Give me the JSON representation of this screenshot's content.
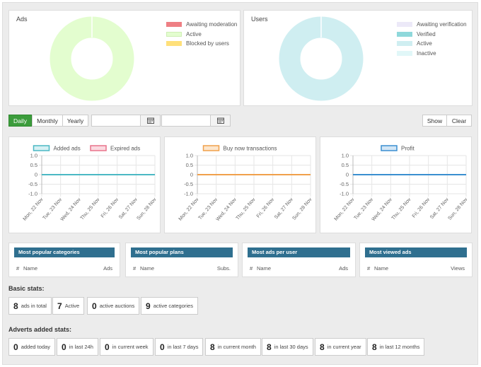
{
  "ads_panel": {
    "title": "Ads",
    "legend": [
      {
        "label": "Awaiting moderation",
        "color": "#ee7f84"
      },
      {
        "label": "Active",
        "color": "#e3fdcf"
      },
      {
        "label": "Blocked by users",
        "color": "#ffe07a"
      }
    ]
  },
  "users_panel": {
    "title": "Users",
    "legend": [
      {
        "label": "Awaiting verification",
        "color": "#ece9f8"
      },
      {
        "label": "Verified",
        "color": "#8fd8db"
      },
      {
        "label": "Active",
        "color": "#cfeef1"
      },
      {
        "label": "Inactive",
        "color": "#e1f7f8"
      }
    ]
  },
  "filter": {
    "daily": "Daily",
    "monthly": "Monthly",
    "yearly": "Yearly",
    "show": "Show",
    "clear": "Clear"
  },
  "chart_data": [
    {
      "type": "doughnut",
      "categories": [
        "Awaiting moderation",
        "Active",
        "Blocked by users"
      ],
      "values": [
        0,
        1,
        0
      ],
      "colors": [
        "#ee7f84",
        "#e3fdcf",
        "#ffe07a"
      ]
    },
    {
      "type": "doughnut",
      "categories": [
        "Awaiting verification",
        "Verified",
        "Active",
        "Inactive"
      ],
      "values": [
        0,
        0,
        1,
        0
      ],
      "colors": [
        "#ece9f8",
        "#8fd8db",
        "#cfeef1",
        "#e1f7f8"
      ]
    },
    {
      "type": "line",
      "x": [
        "Mon, 22 Nov",
        "Tue, 23 Nov",
        "Wed, 24 Nov",
        "Thu, 25 Nov",
        "Fri, 26 Nov",
        "Sat, 27 Nov",
        "Sun, 28 Nov"
      ],
      "yticks": [
        "1.0",
        "0.5",
        "0",
        "-0.5",
        "-1.0"
      ],
      "ylim": [
        -1,
        1
      ],
      "series": [
        {
          "name": "Added ads",
          "values": [
            0,
            0,
            0,
            0,
            0,
            0,
            0
          ],
          "color": "#4bb8c4",
          "fill": "#d5f0f3"
        },
        {
          "name": "Expired ads",
          "values": [
            0,
            0,
            0,
            0,
            0,
            0,
            0
          ],
          "color": "#e8738c",
          "fill": "#fbd9e0"
        }
      ]
    },
    {
      "type": "line",
      "x": [
        "Mon, 22 Nov",
        "Tue, 23 Nov",
        "Wed, 24 Nov",
        "Thu, 25 Nov",
        "Fri, 26 Nov",
        "Sat, 27 Nov",
        "Sun, 28 Nov"
      ],
      "yticks": [
        "1.0",
        "0.5",
        "0",
        "-0.5",
        "-1.0"
      ],
      "ylim": [
        -1,
        1
      ],
      "series": [
        {
          "name": "Buy now transactions",
          "values": [
            0,
            0,
            0,
            0,
            0,
            0,
            0
          ],
          "color": "#f0a04b",
          "fill": "#fde6cc"
        }
      ]
    },
    {
      "type": "line",
      "x": [
        "Mon, 22 Nov",
        "Tue, 23 Nov",
        "Wed, 24 Nov",
        "Thu, 25 Nov",
        "Fri, 26 Nov",
        "Sat, 27 Nov",
        "Sun, 28 Nov"
      ],
      "yticks": [
        "1.0",
        "0.5",
        "0",
        "-0.5",
        "-1.0"
      ],
      "ylim": [
        -1,
        1
      ],
      "series": [
        {
          "name": "Profit",
          "values": [
            0,
            0,
            0,
            0,
            0,
            0,
            0
          ],
          "color": "#3a8fd0",
          "fill": "#d2e6f6"
        }
      ]
    }
  ],
  "lists": [
    {
      "title": "Most popular categories",
      "hash": "#",
      "col1": "Name",
      "col2": "Ads"
    },
    {
      "title": "Most popular plans",
      "hash": "#",
      "col1": "Name",
      "col2": "Subs."
    },
    {
      "title": "Most ads per user",
      "hash": "#",
      "col1": "Name",
      "col2": "Ads"
    },
    {
      "title": "Most viewed ads",
      "hash": "#",
      "col1": "Name",
      "col2": "Views"
    }
  ],
  "basic_stats": {
    "title": "Basic stats:",
    "items": [
      {
        "value": "8",
        "label": "ads in total"
      },
      {
        "value": "7",
        "label": "Active"
      },
      {
        "value": "0",
        "label": "active auctions"
      },
      {
        "value": "9",
        "label": "active categories"
      }
    ]
  },
  "added_stats": {
    "title": "Adverts added stats:",
    "items": [
      {
        "value": "0",
        "label": "added today"
      },
      {
        "value": "0",
        "label": "in last 24h"
      },
      {
        "value": "0",
        "label": "in current week"
      },
      {
        "value": "0",
        "label": "in last 7 days"
      },
      {
        "value": "8",
        "label": "in current month"
      },
      {
        "value": "8",
        "label": "in last 30 days"
      },
      {
        "value": "8",
        "label": "in current year"
      },
      {
        "value": "8",
        "label": "in last 12 months"
      }
    ]
  }
}
